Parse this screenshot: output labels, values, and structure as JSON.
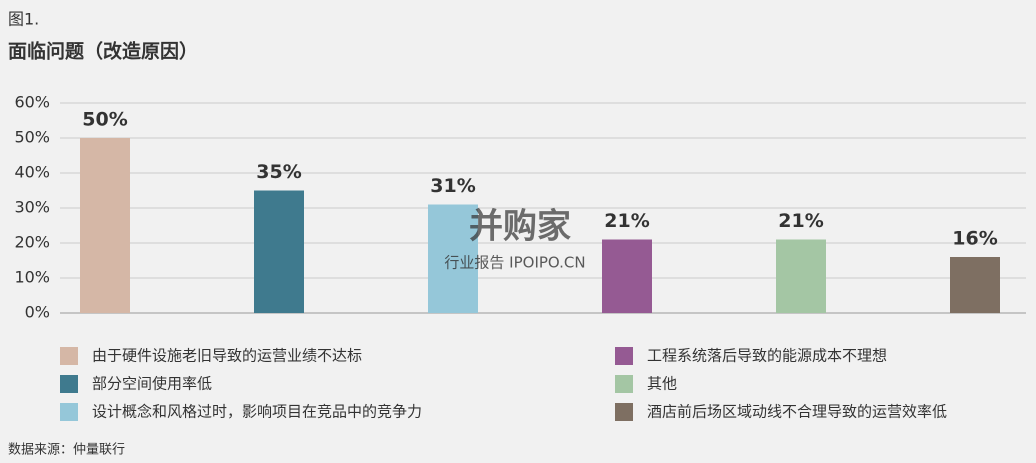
{
  "figure_label": "图1.",
  "chart_data": {
    "type": "bar",
    "title": "面临问题（改造原因）",
    "categories": [
      "由于硬件设施老旧导致的运营业绩不达标",
      "部分空间使用率低",
      "设计概念和风格过时，影响项目在竞品中的竞争力",
      "工程系统落后导致的能源成本不理想",
      "其他",
      "酒店前后场区域动线不合理导致的运营效率低"
    ],
    "values": [
      50,
      35,
      31,
      21,
      21,
      16
    ],
    "value_labels": [
      "50%",
      "35%",
      "31%",
      "21%",
      "21%",
      "16%"
    ],
    "colors": [
      "#d5b7a6",
      "#3f7a8e",
      "#95c7d9",
      "#955a93",
      "#a4c6a4",
      "#7e6f62"
    ],
    "ylim": [
      0,
      60
    ],
    "yticks": [
      {
        "value": 0,
        "label": "0%"
      },
      {
        "value": 10,
        "label": "10%"
      },
      {
        "value": 20,
        "label": "20%"
      },
      {
        "value": 30,
        "label": "30%"
      },
      {
        "value": 40,
        "label": "40%"
      },
      {
        "value": 50,
        "label": "50%"
      },
      {
        "value": 60,
        "label": "60%"
      }
    ],
    "grid": true
  },
  "watermark": {
    "brand": "并购家",
    "subtitle": "行业报告 IPOIPO.CN"
  },
  "source": "数据来源：仲量联行"
}
